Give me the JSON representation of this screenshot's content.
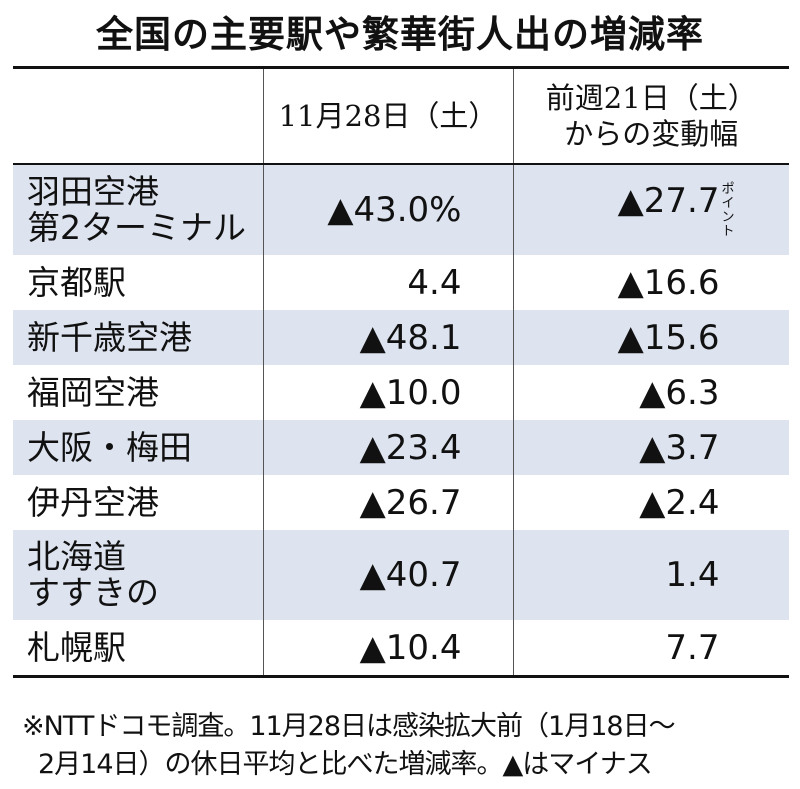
{
  "chart_data": {
    "type": "table",
    "title": "全国の主要駅や繁華街人出の増減率",
    "columns": [
      "",
      "11月28日（土）",
      "前週21日（土）\nからの変動幅"
    ],
    "header_lines": [
      [
        "11月28日（土）"
      ],
      [
        "前週21日（土）",
        "からの変動幅"
      ]
    ],
    "rows": [
      {
        "name": "羽田空港\n第2ターミナル",
        "name_lines": [
          "羽田空港",
          "第2ターミナル"
        ],
        "value1": "▲43.0%",
        "value2": "▲27.7",
        "value2_unit": "ポイント",
        "tall": true
      },
      {
        "name": "京都駅",
        "name_lines": [
          "京都駅"
        ],
        "value1": "4.4",
        "value2": "▲16.6",
        "value2_unit": ""
      },
      {
        "name": "新千歳空港",
        "name_lines": [
          "新千歳空港"
        ],
        "value1": "▲48.1",
        "value2": "▲15.6",
        "value2_unit": ""
      },
      {
        "name": "福岡空港",
        "name_lines": [
          "福岡空港"
        ],
        "value1": "▲10.0",
        "value2": "▲6.3",
        "value2_unit": ""
      },
      {
        "name": "大阪・梅田",
        "name_lines": [
          "大阪・梅田"
        ],
        "value1": "▲23.4",
        "value2": "▲3.7",
        "value2_unit": ""
      },
      {
        "name": "伊丹空港",
        "name_lines": [
          "伊丹空港"
        ],
        "value1": "▲26.7",
        "value2": "▲2.4",
        "value2_unit": ""
      },
      {
        "name": "北海道\nすすきの",
        "name_lines": [
          "北海道",
          "すすきの"
        ],
        "value1": "▲40.7",
        "value2": "1.4",
        "value2_unit": "",
        "tall": true
      },
      {
        "name": "札幌駅",
        "name_lines": [
          "札幌駅"
        ],
        "value1": "▲10.4",
        "value2": "7.7",
        "value2_unit": ""
      }
    ],
    "note_lines": [
      "※NTTドコモ調査。11月28日は感染拡大前（1月18日～",
      "2月14日）の休日平均と比べた増減率。▲はマイナス"
    ]
  },
  "colors": {
    "shade_row": "#dde4ef",
    "text": "#111111",
    "background": "#ffffff"
  }
}
